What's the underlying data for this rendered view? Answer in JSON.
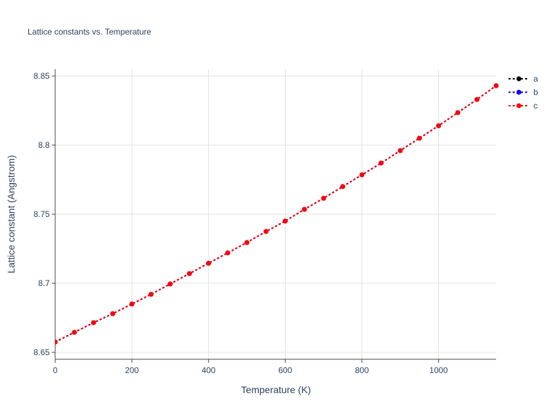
{
  "chart_data": {
    "type": "line",
    "title": "Lattice constants vs. Temperature",
    "xlabel": "Temperature (K)",
    "ylabel": "Lattice constant (Angstrom)",
    "xlim": [
      0,
      1150
    ],
    "ylim": [
      8.645,
      8.855
    ],
    "xticks": [
      0,
      200,
      400,
      600,
      800,
      1000
    ],
    "xtick_labels": [
      "0",
      "200",
      "400",
      "600",
      "800",
      "1000"
    ],
    "yticks": [
      8.65,
      8.7,
      8.75,
      8.8,
      8.85
    ],
    "ytick_labels": [
      "8.65",
      "8.7",
      "8.75",
      "8.8",
      "8.85"
    ],
    "grid": true,
    "legend_position": "top-right",
    "x": [
      0,
      50,
      100,
      150,
      200,
      250,
      300,
      350,
      400,
      450,
      500,
      550,
      600,
      650,
      700,
      750,
      800,
      850,
      900,
      950,
      1000,
      1050,
      1100,
      1150
    ],
    "series": [
      {
        "name": "a",
        "color": "#000000",
        "values": [
          8.6575,
          8.6645,
          8.6715,
          8.678,
          8.685,
          8.692,
          8.6995,
          8.707,
          8.7145,
          8.722,
          8.7295,
          8.7375,
          8.745,
          8.7535,
          8.7615,
          8.77,
          8.7785,
          8.787,
          8.796,
          8.805,
          8.814,
          8.8235,
          8.833,
          8.843
        ]
      },
      {
        "name": "b",
        "color": "#0000ff",
        "values": [
          8.6575,
          8.6645,
          8.6715,
          8.678,
          8.685,
          8.692,
          8.6995,
          8.707,
          8.7145,
          8.722,
          8.7295,
          8.7375,
          8.745,
          8.7535,
          8.7615,
          8.77,
          8.7785,
          8.787,
          8.796,
          8.805,
          8.814,
          8.8235,
          8.833,
          8.843
        ]
      },
      {
        "name": "c",
        "color": "#ff0000",
        "values": [
          8.6575,
          8.6645,
          8.6715,
          8.678,
          8.685,
          8.692,
          8.6995,
          8.707,
          8.7145,
          8.722,
          8.7295,
          8.7375,
          8.745,
          8.7535,
          8.7615,
          8.77,
          8.7785,
          8.787,
          8.796,
          8.805,
          8.814,
          8.8235,
          8.833,
          8.843
        ]
      }
    ]
  }
}
